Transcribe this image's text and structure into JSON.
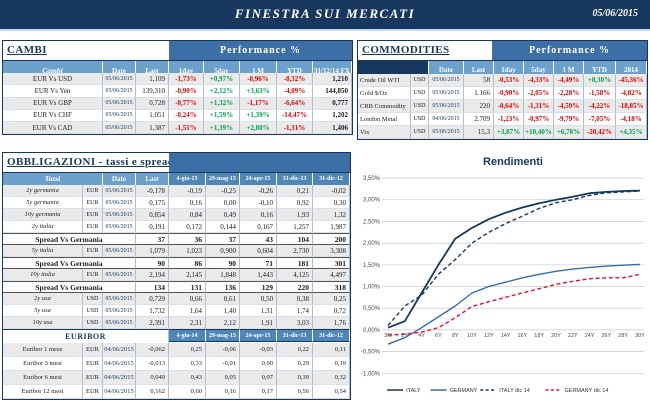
{
  "header": {
    "title": "FINESTRA SUI MERCATI",
    "date": "05/06/2015"
  },
  "colors": {
    "navy": "#17375E",
    "performance_band_blue": "#3C6FA6",
    "column_header_blue": "#6BA1CC",
    "date_header_blue": "#4E86B8",
    "stripe_gray": "#EAEAEA",
    "negative_red": "#E00000",
    "positive_green": "#00A050",
    "italy_line": "#17375E",
    "germany_line": "#376CA5",
    "germany_dic14_line": "#E8112D"
  },
  "cambi": {
    "section_title": "CAMBI",
    "performance_label": "Performance %",
    "columns": [
      "Cambi",
      "Date",
      "Last",
      "1day",
      "5day",
      "1 M",
      "YTD",
      "31/12/14 FX"
    ],
    "rows": [
      {
        "name": "EUR Vs USD",
        "date": "05/06/2015",
        "last": "1,109",
        "perf": [
          "-1,73%",
          "+0,97%",
          "-0,96%",
          "-8,32%"
        ],
        "fx": "1,210"
      },
      {
        "name": "EUR Vs Yen",
        "date": "05/06/2015",
        "last": "139,310",
        "perf": [
          "-0,90%",
          "+2,12%",
          "+3,63%",
          "-4,09%"
        ],
        "fx": "144,850"
      },
      {
        "name": "EUR Vs GBP",
        "date": "05/06/2015",
        "last": "0,728",
        "perf": [
          "-0,77%",
          "+1,32%",
          "-1,17%",
          "-6,64%"
        ],
        "fx": "0,777"
      },
      {
        "name": "EUR Vs CHF",
        "date": "05/06/2015",
        "last": "1,051",
        "perf": [
          "-0,24%",
          "+1,59%",
          "+1,39%",
          "-14,47%"
        ],
        "fx": "1,202"
      },
      {
        "name": "EUR Vs CAD",
        "date": "05/06/2015",
        "last": "1,387",
        "perf": [
          "-1,51%",
          "+1,39%",
          "+2,80%",
          "-1,31%"
        ],
        "fx": "1,406"
      }
    ]
  },
  "commodities": {
    "section_title": "COMMODITIES",
    "performance_label": "Performance %",
    "columns": [
      "Date",
      "Last",
      "1day",
      "5day",
      "1 M",
      "YTD",
      "2014"
    ],
    "rows": [
      {
        "name": "Crude Oil WTI",
        "ccy": "USD",
        "date": "05/06/2015",
        "last": "58",
        "perf": [
          "-0,53%",
          "-4,33%",
          "-4,49%",
          "+8,30%",
          "-45,36%"
        ]
      },
      {
        "name": "Gold $/Oz",
        "ccy": "USD",
        "date": "05/06/2015",
        "last": "1.166",
        "perf": [
          "-0,90%",
          "-2,05%",
          "-2,28%",
          "-1,58%",
          "-4,82%"
        ]
      },
      {
        "name": "CRB Commodity",
        "ccy": "USD",
        "date": "05/06/2015",
        "last": "220",
        "perf": [
          "-0,64%",
          "-1,31%",
          "-4,59%",
          "-4,22%",
          "-18,85%"
        ]
      },
      {
        "name": "London Metal",
        "ccy": "USD",
        "date": "04/06/2015",
        "last": "2.709",
        "perf": [
          "-1,23%",
          "-0,97%",
          "-9,79%",
          "-7,05%",
          "-4,18%"
        ]
      },
      {
        "name": "Vix",
        "ccy": "USD",
        "date": "05/06/2015",
        "last": "15,3",
        "perf": [
          "+3,87%",
          "+10,40%",
          "+6,78%",
          "-20,42%",
          "+4,35%"
        ]
      }
    ]
  },
  "obbligazioni": {
    "section_title": "OBBLIGAZIONI - tassi e spread",
    "columns": [
      "Tassi",
      "Date",
      "Last",
      "4-giu-15",
      "29-mag-15",
      "24-apr-15",
      "31-dic-13",
      "31-dic-12"
    ],
    "rows": [
      {
        "type": "yield",
        "name": "2y germania",
        "ccy": "EUR",
        "date": "05/06/2015",
        "last": "-0,178",
        "values": [
          "-0,19",
          "-0,25",
          "-0,26",
          "0,21",
          "-0,02"
        ]
      },
      {
        "type": "yield",
        "name": "5y germania",
        "ccy": "EUR",
        "date": "05/06/2015",
        "last": "0,175",
        "values": [
          "0,16",
          "0,00",
          "-0,10",
          "0,92",
          "0,30"
        ]
      },
      {
        "type": "yield",
        "name": "10y germania",
        "ccy": "EUR",
        "date": "05/06/2015",
        "last": "0,854",
        "values": [
          "0,84",
          "0,49",
          "0,16",
          "1,93",
          "1,32"
        ]
      },
      {
        "type": "yield",
        "name": "2y italia",
        "ccy": "EUR",
        "date": "05/06/2015",
        "last": "0,191",
        "values": [
          "0,172",
          "0,144",
          "0,167",
          "1,257",
          "1,987"
        ]
      },
      {
        "type": "spread",
        "name": "Spread Vs Germania",
        "last": "37",
        "values": [
          "36",
          "37",
          "43",
          "104",
          "200"
        ]
      },
      {
        "type": "yield",
        "name": "5y italia",
        "ccy": "EUR",
        "date": "05/06/2015",
        "last": "1,079",
        "values": [
          "1,023",
          "0,900",
          "0,604",
          "2,730",
          "3,308"
        ]
      },
      {
        "type": "spread",
        "name": "Spread Vs Germania",
        "last": "90",
        "values": [
          "86",
          "90",
          "71",
          "181",
          "301"
        ]
      },
      {
        "type": "yield",
        "name": "10y italia",
        "ccy": "EUR",
        "date": "05/06/2015",
        "last": "2,194",
        "values": [
          "2,145",
          "1,848",
          "1,443",
          "4,125",
          "4,497"
        ]
      },
      {
        "type": "spread",
        "name": "Spread Vs Germania",
        "last": "134",
        "values": [
          "131",
          "136",
          "129",
          "220",
          "318"
        ]
      },
      {
        "type": "yield",
        "name": "2y usa",
        "ccy": "USD",
        "date": "05/06/2015",
        "last": "0,729",
        "values": [
          "0,66",
          "0,61",
          "0,50",
          "0,38",
          "0,25"
        ]
      },
      {
        "type": "yield",
        "name": "5y usa",
        "ccy": "USD",
        "date": "05/06/2015",
        "last": "1,732",
        "values": [
          "1,64",
          "1,40",
          "1,31",
          "1,74",
          "0,72"
        ]
      },
      {
        "type": "yield",
        "name": "10y usa",
        "ccy": "USD",
        "date": "05/06/2015",
        "last": "2,391",
        "values": [
          "2,31",
          "2,12",
          "1,91",
          "3,03",
          "1,76"
        ]
      }
    ],
    "euribor": {
      "label": "EURIBOR",
      "columns": [
        "4-giu-14",
        "29-mag-15",
        "24-apr-15",
        "31-dic-13",
        "31-dic-12"
      ],
      "rows": [
        {
          "name": "Euribor 1 mese",
          "ccy": "EUR",
          "date": "04/06/2015",
          "last": "-0,062",
          "values": [
            "0,25",
            "-0,06",
            "-0,03",
            "0,22",
            "0,11"
          ]
        },
        {
          "name": "Euribor 3 mesi",
          "ccy": "EUR",
          "date": "04/06/2015",
          "last": "-0,013",
          "values": [
            "0,33",
            "-0,01",
            "0,00",
            "0,29",
            "0,19"
          ]
        },
        {
          "name": "Euribor 6 mesi",
          "ccy": "EUR",
          "date": "04/06/2015",
          "last": "0,049",
          "values": [
            "0,43",
            "0,05",
            "0,07",
            "0,39",
            "0,32"
          ]
        },
        {
          "name": "Euribor 12 mesi",
          "ccy": "EUR",
          "date": "04/06/2015",
          "last": "0,162",
          "values": [
            "0,60",
            "0,16",
            "0,17",
            "0,56",
            "0,54"
          ]
        }
      ]
    }
  },
  "chart_data": {
    "type": "line",
    "title": "Rendimenti",
    "categories": [
      "3M",
      "2Y",
      "4Y",
      "6Y",
      "8Y",
      "10Y",
      "12Y",
      "14Y",
      "16Y",
      "18Y",
      "20Y",
      "22Y",
      "24Y",
      "26Y",
      "28Y",
      "30Y"
    ],
    "ylim": [
      -1.0,
      3.5
    ],
    "ytick_step": 0.5,
    "grid": true,
    "legend_position": "bottom",
    "series": [
      {
        "name": "ITALY",
        "style": "solid",
        "color": "#17375E",
        "values": [
          0.05,
          0.2,
          0.85,
          1.5,
          2.1,
          2.35,
          2.55,
          2.7,
          2.82,
          2.92,
          3.0,
          3.07,
          3.15,
          3.18,
          3.2,
          3.21
        ]
      },
      {
        "name": "GERMANY",
        "style": "solid",
        "color": "#376CA5",
        "values": [
          -0.33,
          -0.18,
          0.05,
          0.3,
          0.55,
          0.85,
          1.0,
          1.1,
          1.2,
          1.28,
          1.35,
          1.4,
          1.44,
          1.47,
          1.49,
          1.51
        ]
      },
      {
        "name": "ITALY dic 14",
        "style": "dashed",
        "color": "#17375E",
        "values": [
          0.1,
          0.55,
          0.8,
          1.28,
          1.62,
          2.0,
          2.25,
          2.45,
          2.62,
          2.8,
          2.93,
          3.0,
          3.1,
          3.16,
          3.18,
          3.2
        ]
      },
      {
        "name": "GERMANY dic 14",
        "style": "dashed",
        "color": "#E8112D",
        "values": [
          -0.12,
          -0.1,
          -0.05,
          0.05,
          0.28,
          0.54,
          0.65,
          0.75,
          0.85,
          0.95,
          1.05,
          1.12,
          1.18,
          1.2,
          1.2,
          1.28
        ]
      }
    ]
  }
}
